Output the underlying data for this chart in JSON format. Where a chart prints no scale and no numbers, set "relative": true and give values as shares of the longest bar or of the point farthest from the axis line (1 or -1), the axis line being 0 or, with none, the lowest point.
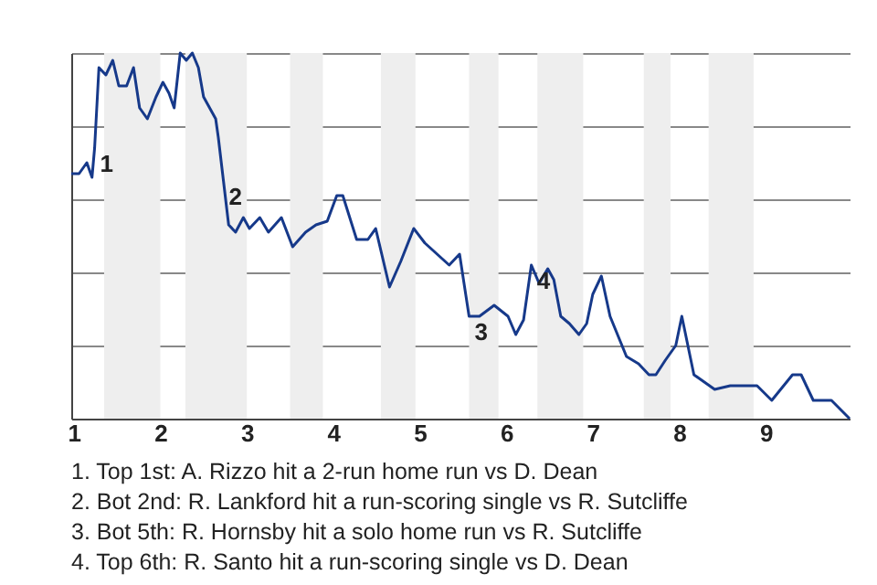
{
  "chart_data": {
    "type": "line",
    "relative": true,
    "grid": "y",
    "color": "#16398a",
    "xlim": [
      0.97,
      9.97
    ],
    "xticks": [
      1,
      2,
      3,
      4,
      5,
      6,
      7,
      8,
      9
    ],
    "x": [
      0.97,
      1.06,
      1.15,
      1.21,
      1.24,
      1.29,
      1.37,
      1.45,
      1.52,
      1.61,
      1.69,
      1.76,
      1.85,
      1.95,
      2.03,
      2.1,
      2.16,
      2.23,
      2.3,
      2.37,
      2.44,
      2.5,
      2.57,
      2.64,
      2.67,
      2.73,
      2.79,
      2.87,
      2.96,
      3.03,
      3.15,
      3.25,
      3.4,
      3.53,
      3.68,
      3.8,
      3.93,
      4.04,
      4.11,
      4.27,
      4.4,
      4.49,
      4.56,
      4.65,
      4.78,
      4.93,
      5.06,
      5.34,
      5.46,
      5.57,
      5.69,
      5.86,
      6.02,
      6.11,
      6.2,
      6.29,
      6.38,
      6.48,
      6.55,
      6.63,
      6.73,
      6.84,
      6.93,
      7.0,
      7.1,
      7.2,
      7.39,
      7.53,
      7.65,
      7.73,
      7.84,
      7.96,
      8.03,
      8.17,
      8.41,
      8.59,
      8.9,
      9.07,
      9.31,
      9.41,
      9.55,
      9.76,
      9.97
    ],
    "values": [
      0.67,
      0.67,
      0.7,
      0.66,
      0.74,
      0.96,
      0.94,
      0.98,
      0.91,
      0.91,
      0.96,
      0.85,
      0.82,
      0.88,
      0.92,
      0.89,
      0.85,
      1,
      0.98,
      1,
      0.96,
      0.88,
      0.85,
      0.82,
      0.77,
      0.65,
      0.53,
      0.51,
      0.55,
      0.52,
      0.55,
      0.51,
      0.55,
      0.47,
      0.51,
      0.53,
      0.54,
      0.61,
      0.61,
      0.49,
      0.49,
      0.52,
      0.45,
      0.36,
      0.43,
      0.52,
      0.48,
      0.42,
      0.45,
      0.28,
      0.28,
      0.31,
      0.28,
      0.23,
      0.27,
      0.42,
      0.37,
      0.41,
      0.38,
      0.28,
      0.26,
      0.23,
      0.26,
      0.34,
      0.39,
      0.28,
      0.17,
      0.15,
      0.12,
      0.12,
      0.16,
      0.2,
      0.28,
      0.12,
      0.08,
      0.09,
      0.09,
      0.05,
      0.12,
      0.12,
      0.05,
      0.05,
      0
    ],
    "bands": [
      {
        "axis": "x",
        "from": 1.35,
        "to": 2,
        "color": "#eeeeee"
      },
      {
        "axis": "x",
        "from": 2.29,
        "to": 3,
        "color": "#eeeeee"
      },
      {
        "axis": "x",
        "from": 3.5,
        "to": 3.88,
        "color": "#eeeeee"
      },
      {
        "axis": "x",
        "from": 4.55,
        "to": 4.95,
        "color": "#eeeeee"
      },
      {
        "axis": "x",
        "from": 5.57,
        "to": 5.91,
        "color": "#eeeeee"
      },
      {
        "axis": "x",
        "from": 6.36,
        "to": 6.89,
        "color": "#eeeeee"
      },
      {
        "axis": "x",
        "from": 7.59,
        "to": 7.9,
        "color": "#eeeeee"
      },
      {
        "axis": "x",
        "from": 8.34,
        "to": 8.86,
        "color": "#eeeeee"
      }
    ],
    "annotations": [
      {
        "text": "1",
        "x": 1.24,
        "y": 0.74
      },
      {
        "text": "2",
        "x": 2.73,
        "y": 0.65
      },
      {
        "text": "3",
        "x": 5.57,
        "y": 0.28
      },
      {
        "text": "4",
        "x": 6.29,
        "y": 0.42
      },
      "1. Top 1st: A. Rizzo hit a 2-run home run vs D. Dean",
      "2. Bot 2nd: R. Lankford hit a run-scoring single vs R. Sutcliffe",
      "3. Bot 5th: R. Hornsby hit a solo home run vs R. Sutcliffe",
      "4. Top 6th: R. Santo hit a run-scoring single vs D. Dean"
    ]
  }
}
